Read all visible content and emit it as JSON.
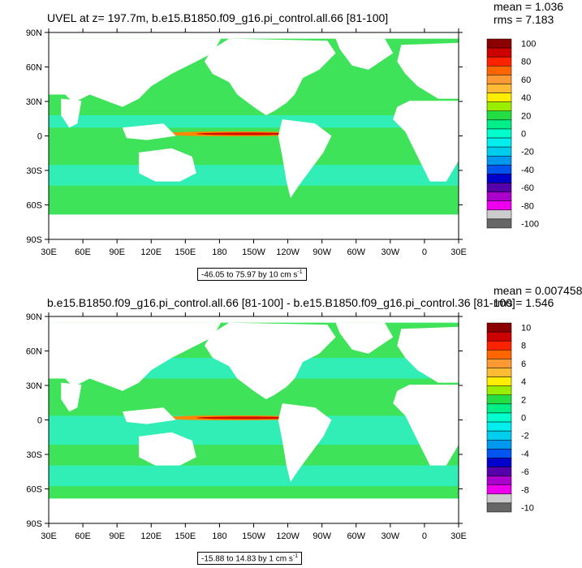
{
  "panels": [
    {
      "title": "UVEL at z= 197.7m, b.e15.B1850.f09_g16.pi_control.all.66 [81-100]",
      "mean": "mean = 1.036",
      "rms": "rms = 7.183",
      "range_text": "-46.05 to 75.97 by 10 cm s",
      "range_exp": "-1",
      "colorbar_labels": [
        "100",
        "80",
        "60",
        "40",
        "20",
        "0",
        "-20",
        "-40",
        "-60",
        "-80",
        "-100"
      ]
    },
    {
      "title": "b.e15.B1850.f09_g16.pi_control.all.66 [81-100] - b.e15.B1850.f09_g16.pi_control.36 [81-100]",
      "mean": "mean = 0.007458",
      "rms": "rms = 1.546",
      "range_text": "-15.88 to 14.83 by 1 cm s",
      "range_exp": "-1",
      "colorbar_labels": [
        "10",
        "8",
        "6",
        "4",
        "2",
        "0",
        "-2",
        "-4",
        "-6",
        "-8",
        "-10"
      ]
    }
  ],
  "lat_labels": [
    "90N",
    "60N",
    "30N",
    "0",
    "30S",
    "60S",
    "90S"
  ],
  "lon_labels": [
    "30E",
    "60E",
    "90E",
    "120E",
    "150E",
    "180",
    "150W",
    "120W",
    "90W",
    "60W",
    "30W",
    "0",
    "30E"
  ],
  "colorbar_colors": [
    "#8b0000",
    "#cc0000",
    "#ff2200",
    "#ff6600",
    "#ff9933",
    "#ffbb33",
    "#ffee00",
    "#99ee00",
    "#22dd44",
    "#00ee88",
    "#00ffcc",
    "#00eeee",
    "#00ccee",
    "#0099ee",
    "#0055ee",
    "#0000cc",
    "#5500aa",
    "#aa00cc",
    "#ee00ee",
    "#cccccc",
    "#666666"
  ],
  "colors": {
    "land": "#ffffff",
    "ocean_base": "#3ee35a",
    "ocean_pale": "#2ff0c8",
    "equator_red": "#cc1100",
    "equator_orange": "#ff8800"
  }
}
